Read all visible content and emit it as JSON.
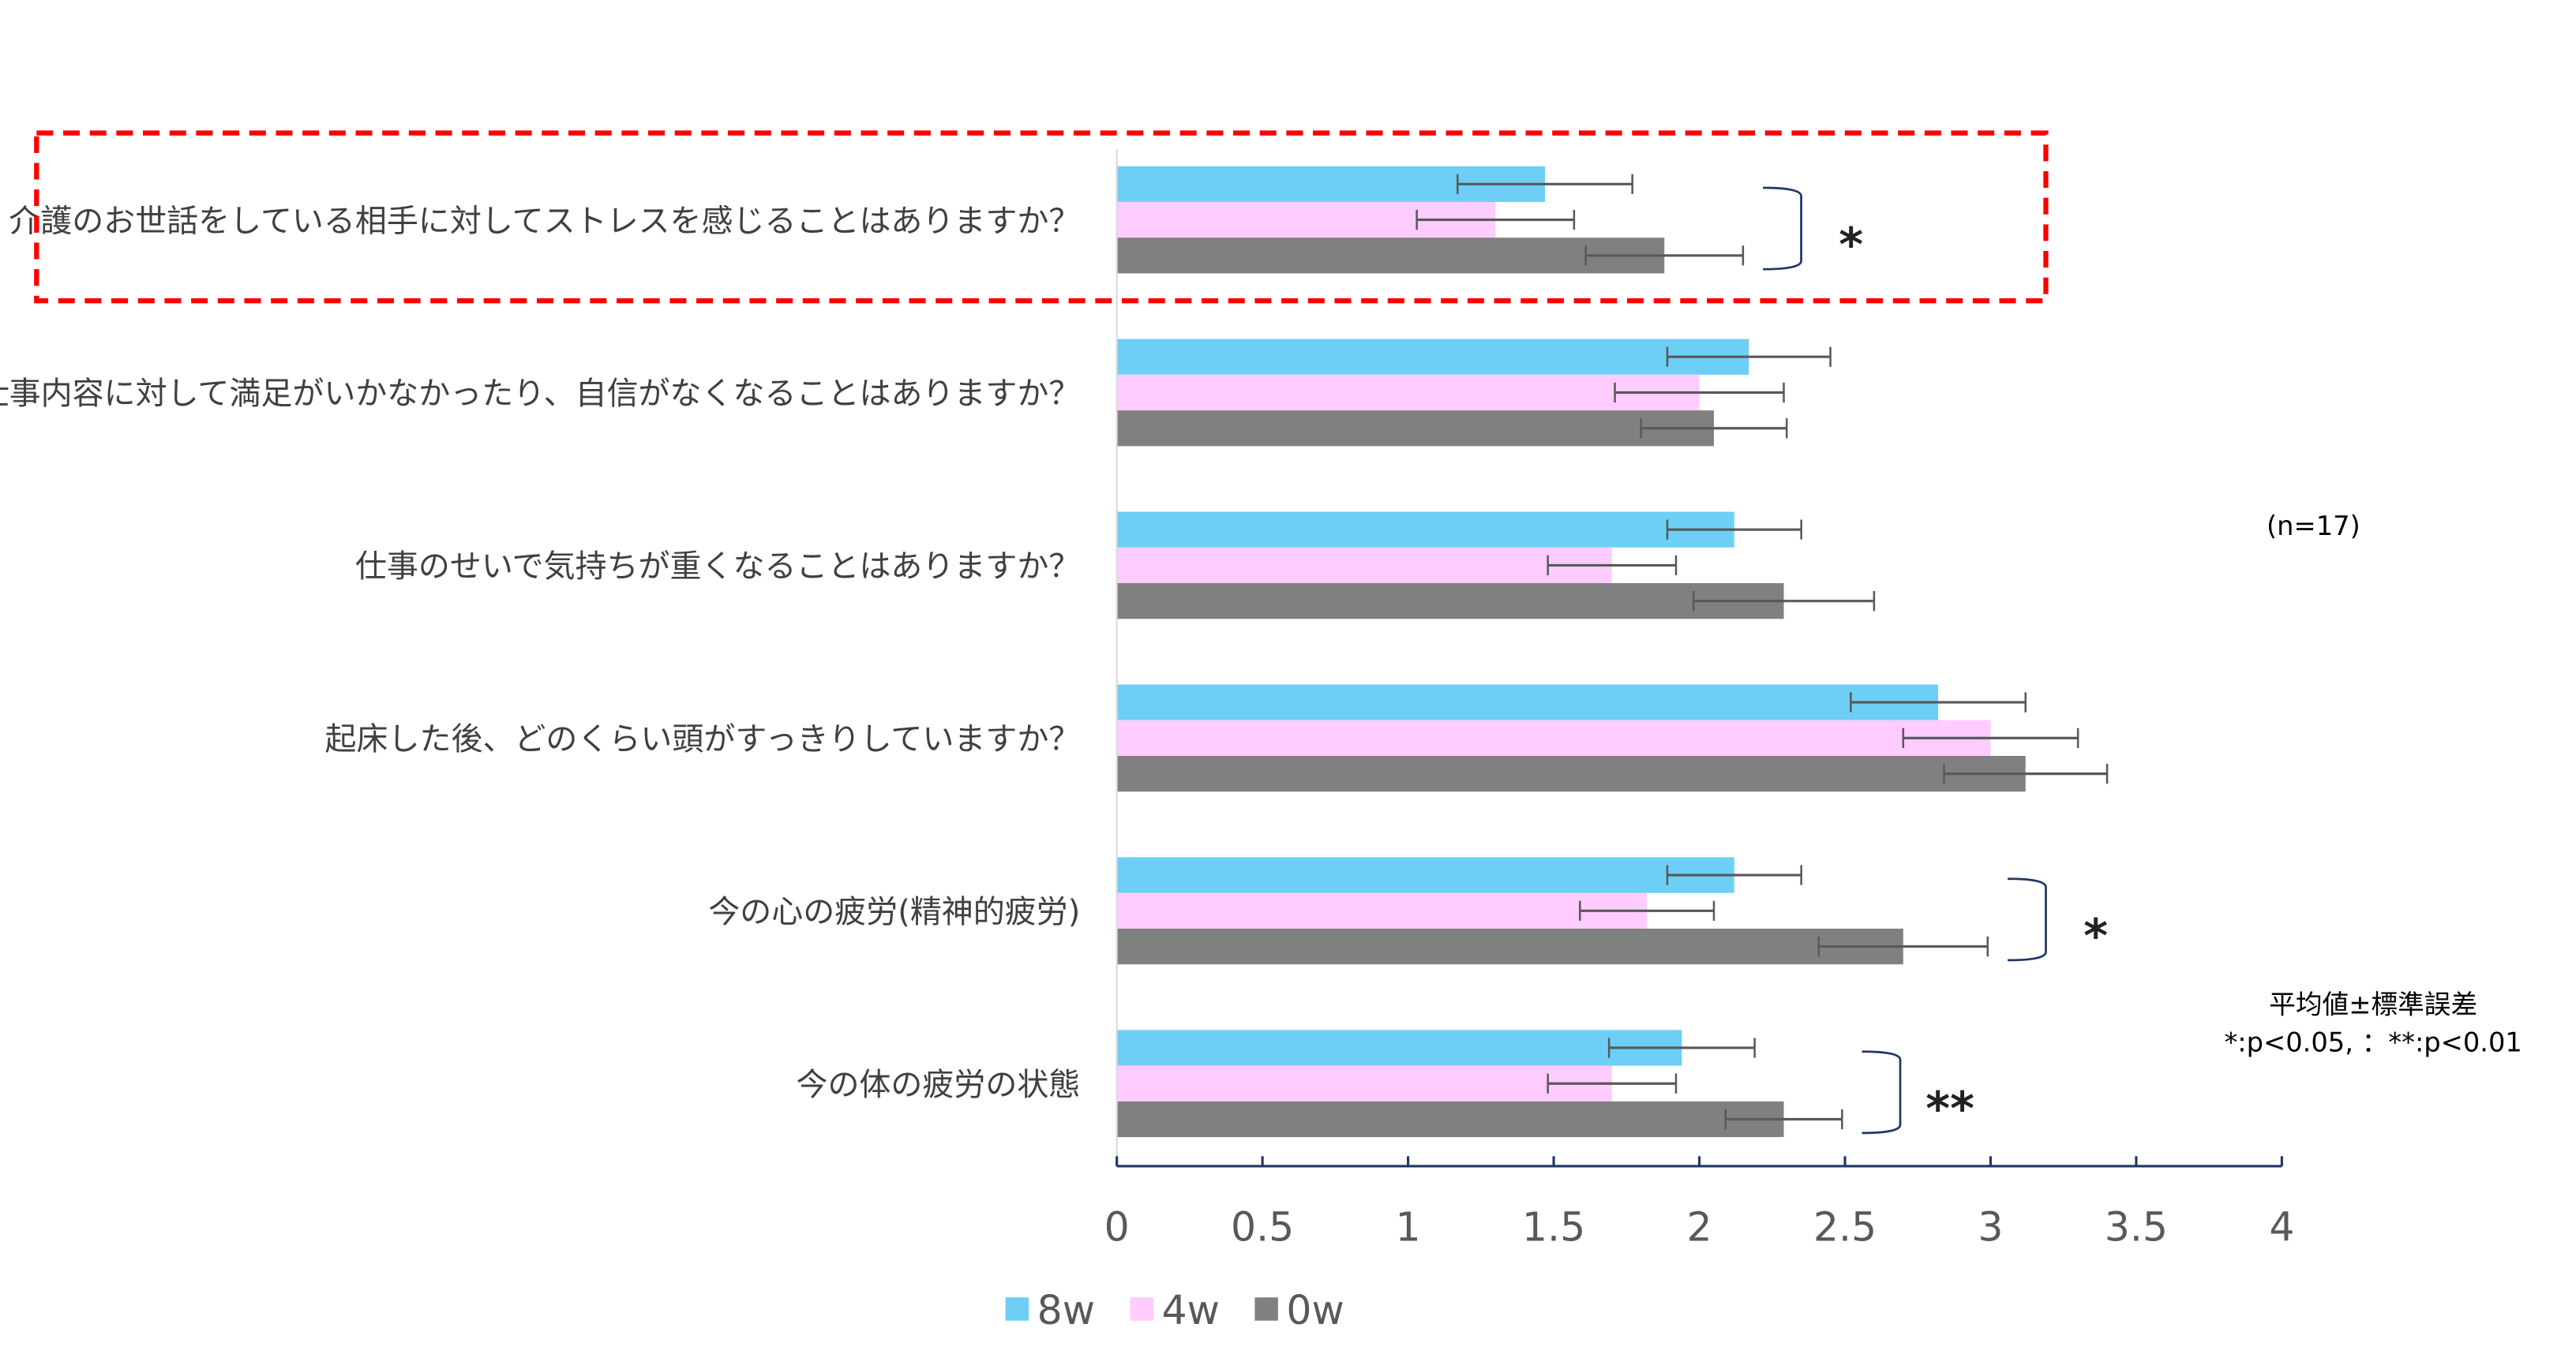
{
  "chart_data": {
    "type": "bar",
    "orientation": "horizontal",
    "categories": [
      "介護のお世話をしている相手に対してストレスを感じることはありますか？",
      "仕事内容に対して満足がいかなかったり、自信がなくなることはありますか？",
      "仕事のせいで気持ちが重くなることはありますか？",
      "起床した後、どのくらい頭がすっきりしていますか？",
      "今の心の疲労(精神的疲労)",
      "今の体の疲労の状態"
    ],
    "series": [
      {
        "name": "8w",
        "color": "#6DCFF6",
        "values": [
          1.47,
          2.17,
          2.12,
          2.82,
          2.12,
          1.94
        ],
        "errors": [
          0.3,
          0.28,
          0.23,
          0.3,
          0.23,
          0.25
        ]
      },
      {
        "name": "4w",
        "color": "#FFCCFF",
        "values": [
          1.3,
          2.0,
          1.7,
          3.0,
          1.82,
          1.7
        ],
        "errors": [
          0.27,
          0.29,
          0.22,
          0.3,
          0.23,
          0.22
        ]
      },
      {
        "name": "0w",
        "color": "#808080",
        "values": [
          1.88,
          2.05,
          2.29,
          3.12,
          2.7,
          2.29
        ],
        "errors": [
          0.27,
          0.25,
          0.31,
          0.28,
          0.29,
          0.2
        ]
      }
    ],
    "xlim": [
      0,
      4
    ],
    "xticks": [
      "0",
      "0.5",
      "1",
      "1.5",
      "2",
      "2.5",
      "3",
      "3.5",
      "4"
    ],
    "grid": false,
    "legend_placement": "bottom",
    "significance": [
      {
        "category_index": 0,
        "mark": "*"
      },
      {
        "category_index": 4,
        "mark": "*"
      },
      {
        "category_index": 5,
        "mark": "**"
      }
    ],
    "highlighted_category_index": 0,
    "highlight_color": "#FF0000",
    "annotations": {
      "n": "(n=17)",
      "note1": "平均値±標準誤差",
      "note2": "*:p<0.05, ：**:p<0.01"
    }
  }
}
